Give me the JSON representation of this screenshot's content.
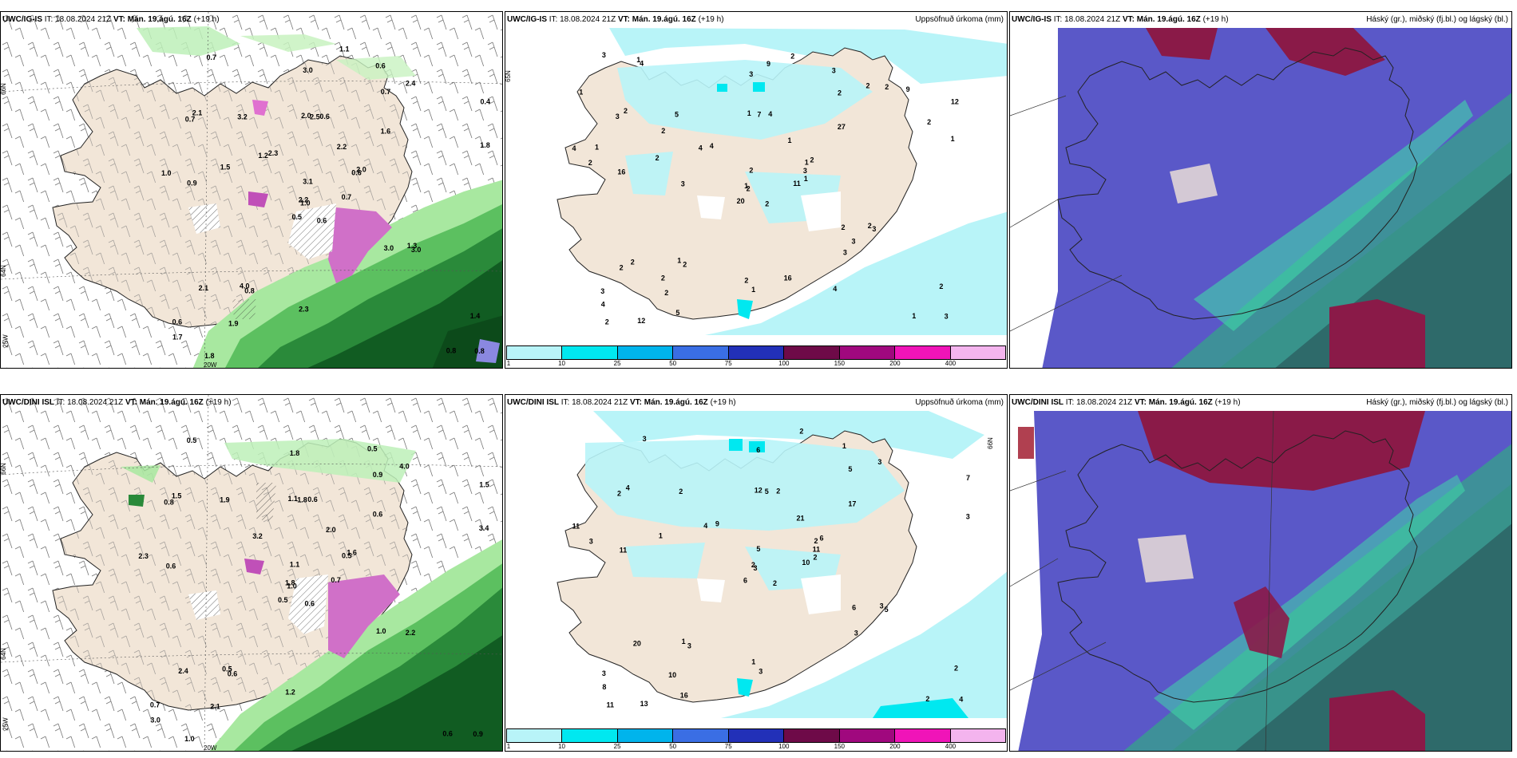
{
  "panels": [
    {
      "model": "UWC/IG-IS",
      "it_label": "IT:",
      "it_value": "18.08.2024 21Z",
      "vt_label": "VT:",
      "vt_value": "Mán. 19.ágú. 16Z",
      "lead": "(+19 h)",
      "product": "",
      "lat_labels": [
        "66N",
        "64N"
      ],
      "lon_labels": [
        "25W",
        "20W"
      ],
      "values": [
        "0.6",
        "0.7",
        "1.0",
        "0.6",
        "0.6",
        "0.8",
        "0.6",
        "0.6",
        "0.7",
        "0.7",
        "0.7",
        "0.8",
        "0.9",
        "0.4",
        "0.5",
        "1.6",
        "1.8",
        "2.0",
        "2.2",
        "2.1",
        "2.3",
        "1.7",
        "1.9",
        "2.5",
        "2.0",
        "3.0",
        "2.1",
        "3.0",
        "1.0",
        "3.0",
        "1.8",
        "2.2",
        "2.3",
        "3.1",
        "3.2",
        "2.4",
        "4.0",
        "0.8",
        "1.4",
        "1.3",
        "1.1",
        "1.2",
        "1.5"
      ]
    },
    {
      "model": "UWC/IG-IS",
      "it_label": "IT:",
      "it_value": "18.08.2024 21Z",
      "vt_label": "VT:",
      "vt_value": "Mán. 19.ágú. 16Z",
      "lead": "(+19 h)",
      "product": "Uppsöfnuð úrkoma (mm)",
      "lat_labels": [
        "65N"
      ],
      "lon_labels": [],
      "values": [
        "2",
        "3",
        "2",
        "3",
        "1",
        "2",
        "3",
        "4",
        "2",
        "11",
        "4",
        "3",
        "16",
        "12",
        "20",
        "27",
        "12",
        "1",
        "1",
        "2",
        "4",
        "4",
        "2",
        "7",
        "2",
        "3",
        "2",
        "3",
        "2",
        "2",
        "1",
        "1",
        "2",
        "2",
        "5",
        "2",
        "1",
        "1",
        "2",
        "2",
        "2",
        "4",
        "2",
        "3",
        "5",
        "4",
        "3",
        "2",
        "1",
        "1",
        "2",
        "2",
        "1",
        "3",
        "4",
        "2",
        "1",
        "3",
        "16",
        "9",
        "9",
        "3",
        "1",
        "2",
        "2"
      ],
      "colorbar": {
        "colors": [
          "#b8f4f8",
          "#00e8f0",
          "#00b4ec",
          "#3a6ee4",
          "#2230b8",
          "#6e0a48",
          "#a0087e",
          "#f014b8",
          "#f4b4ee"
        ],
        "ticks": [
          "1",
          "10",
          "25",
          "50",
          "75",
          "100",
          "150",
          "200",
          "400"
        ]
      }
    },
    {
      "model": "UWC/IG-IS",
      "it_label": "IT:",
      "it_value": "18.08.2024 21Z",
      "vt_label": "VT:",
      "vt_value": "Mán. 19.ágú. 16Z",
      "lead": "(+19 h)",
      "product": "Háský (gr.), miðský (fj.bl.) og lágský (bl.)",
      "lat_labels": [],
      "lon_labels": [],
      "values": []
    },
    {
      "model": "UWC/DINI ISL",
      "it_label": "IT:",
      "it_value": "18.08.2024 21Z",
      "vt_label": "VT:",
      "vt_value": "Mán. 19.ágú. 16Z",
      "lead": "(+19 h)",
      "product": "",
      "lat_labels": [
        "66N",
        "64N"
      ],
      "lon_labels": [
        "25W",
        "20W"
      ],
      "values": [
        "0.6",
        "0.8",
        "1.0",
        "0.7",
        "0.5",
        "0.6",
        "0.5",
        "0.6",
        "0.9",
        "0.7",
        "0.5",
        "0.9",
        "0.6",
        "1.5",
        "0.5",
        "0.6",
        "1.0",
        "1.1",
        "2.0",
        "2.4",
        "3.2",
        "3.0",
        "2.1",
        "1.8",
        "1.6",
        "2.2",
        "1.5",
        "1.8",
        "2.3",
        "1.0",
        "3.4",
        "1.8",
        "1.2",
        "1.1",
        "1.9",
        "4.0",
        "0.5",
        "0.6"
      ]
    },
    {
      "model": "UWC/DINI ISL",
      "it_label": "IT:",
      "it_value": "18.08.2024 21Z",
      "vt_label": "VT:",
      "vt_value": "Mán. 19.ágú. 16Z",
      "lead": "(+19 h)",
      "product": "Uppsöfnuð úrkoma (mm)",
      "lat_labels": [
        "66N"
      ],
      "lon_labels": [],
      "values": [
        "2",
        "2",
        "3",
        "3",
        "2",
        "3",
        "1",
        "2",
        "5",
        "10",
        "3",
        "4",
        "11",
        "7",
        "6",
        "17",
        "13",
        "12",
        "21",
        "20",
        "9",
        "8",
        "10",
        "5",
        "6",
        "5",
        "4",
        "6",
        "3",
        "6",
        "3",
        "2",
        "1",
        "5",
        "2",
        "3",
        "1",
        "2",
        "2",
        "3",
        "2",
        "4",
        "1",
        "3",
        "16",
        "11",
        "11",
        "11",
        "3",
        "2"
      ],
      "colorbar": {
        "colors": [
          "#b8f4f8",
          "#00e8f0",
          "#00b4ec",
          "#3a6ee4",
          "#2230b8",
          "#6e0a48",
          "#a0087e",
          "#f014b8",
          "#f4b4ee"
        ],
        "ticks": [
          "1",
          "10",
          "25",
          "50",
          "75",
          "100",
          "150",
          "200",
          "400"
        ]
      }
    },
    {
      "model": "UWC/DINI ISL",
      "it_label": "IT:",
      "it_value": "18.08.2024 21Z",
      "vt_label": "VT:",
      "vt_value": "Mán. 19.ágú. 16Z",
      "lead": "(+19 h)",
      "product": "Háský (gr.), miðský (fj.bl.) og lágský (bl.)",
      "lat_labels": [],
      "lon_labels": [],
      "values": []
    }
  ]
}
